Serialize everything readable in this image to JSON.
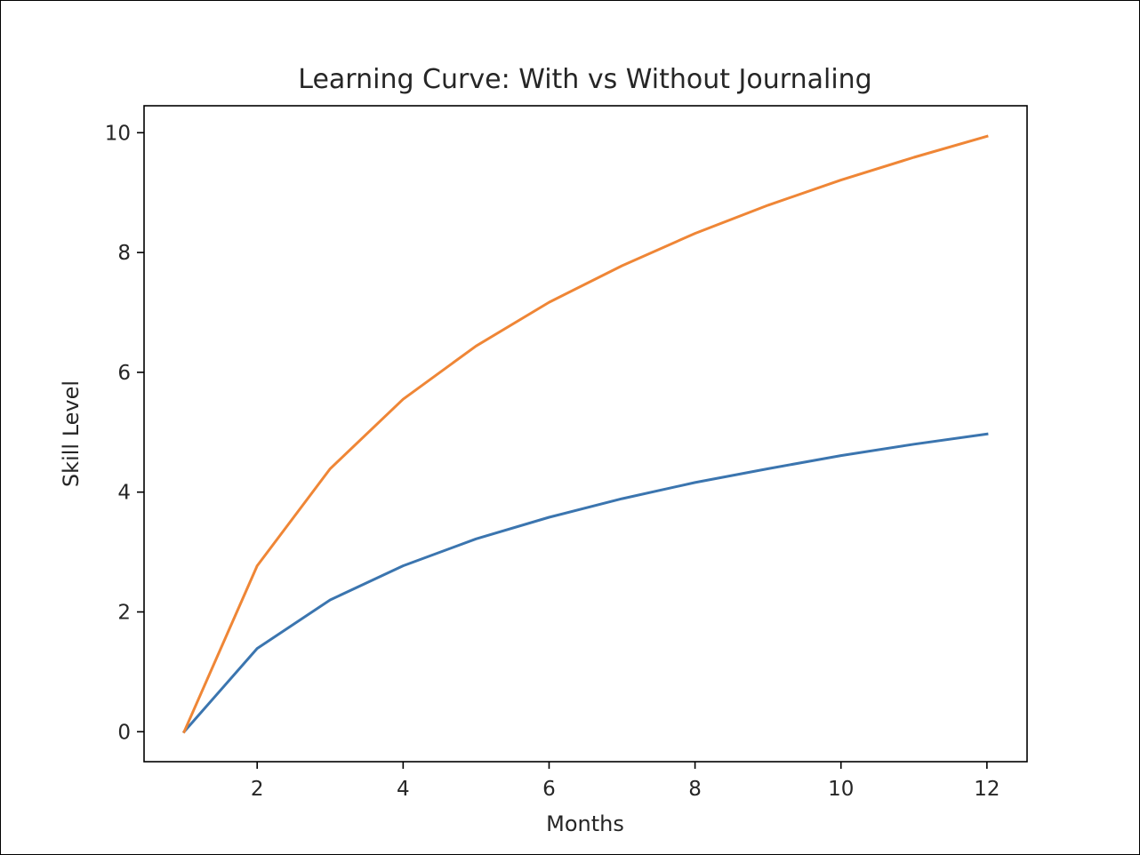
{
  "chart_data": {
    "type": "line",
    "title": "Learning Curve: With vs Without Journaling",
    "xlabel": "Months",
    "ylabel": "Skill Level",
    "x": [
      1,
      2,
      3,
      4,
      5,
      6,
      7,
      8,
      9,
      10,
      11,
      12
    ],
    "xlim": [
      0.45,
      12.55
    ],
    "ylim": [
      -0.5,
      10.45
    ],
    "xticks": [
      2,
      4,
      6,
      8,
      10,
      12
    ],
    "yticks": [
      0,
      2,
      4,
      6,
      8,
      10
    ],
    "grid": false,
    "series": [
      {
        "color": "#3b75af",
        "values": [
          0.0,
          1.39,
          2.2,
          2.77,
          3.22,
          3.58,
          3.89,
          4.16,
          4.39,
          4.61,
          4.8,
          4.97
        ]
      },
      {
        "color": "#ef8636",
        "values": [
          0.0,
          2.77,
          4.39,
          5.55,
          6.44,
          7.17,
          7.78,
          8.32,
          8.79,
          9.21,
          9.59,
          9.94
        ]
      }
    ]
  }
}
